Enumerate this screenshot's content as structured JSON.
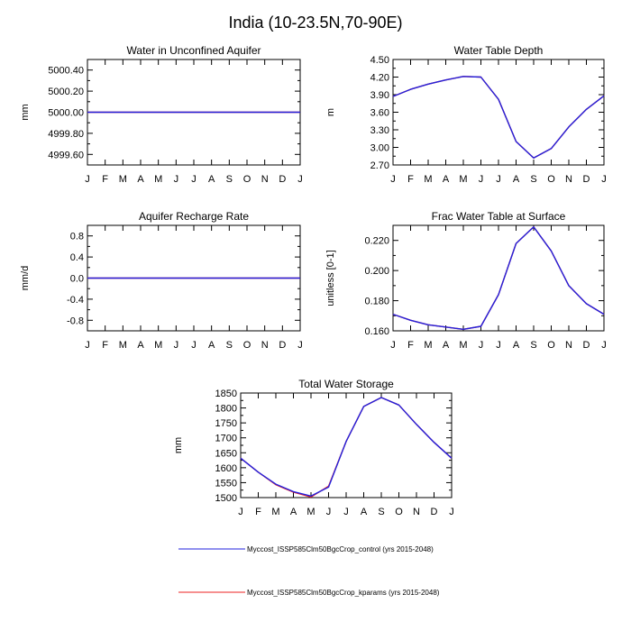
{
  "page_title": "India (10-23.5N,70-90E)",
  "months": [
    "J",
    "F",
    "M",
    "A",
    "M",
    "J",
    "J",
    "A",
    "S",
    "O",
    "N",
    "D",
    "J"
  ],
  "colors": {
    "control": "#2222dd",
    "kparams": "#ee2222"
  },
  "legend": [
    {
      "key": "control",
      "label": "Myccost_ISSP585Clm50BgcCrop_control (yrs 2015-2048)"
    },
    {
      "key": "kparams",
      "label": "Myccost_ISSP585Clm50BgcCrop_kparams (yrs 2015-2048)"
    }
  ],
  "chart_data": [
    {
      "type": "line",
      "title": "Water in Unconfined Aquifer",
      "ylabel": "mm",
      "ylim": [
        4999.5,
        5000.5
      ],
      "yticks": [
        4999.6,
        4999.8,
        5000.0,
        5000.2,
        5000.4
      ],
      "yticklabels": [
        "4999.60",
        "4999.80",
        "5000.00",
        "5000.20",
        "5000.40"
      ],
      "x": [
        "J",
        "F",
        "M",
        "A",
        "M",
        "J",
        "J",
        "A",
        "S",
        "O",
        "N",
        "D",
        "J"
      ],
      "series": [
        {
          "key": "control",
          "values": [
            5000,
            5000,
            5000,
            5000,
            5000,
            5000,
            5000,
            5000,
            5000,
            5000,
            5000,
            5000,
            5000
          ]
        },
        {
          "key": "kparams",
          "values": [
            5000,
            5000,
            5000,
            5000,
            5000,
            5000,
            5000,
            5000,
            5000,
            5000,
            5000,
            5000,
            5000
          ]
        }
      ]
    },
    {
      "type": "line",
      "title": "Water Table Depth",
      "ylabel": "m",
      "ylim": [
        2.7,
        4.5
      ],
      "yticks": [
        2.7,
        3.0,
        3.3,
        3.6,
        3.9,
        4.2,
        4.5
      ],
      "yticklabels": [
        "2.70",
        "3.00",
        "3.30",
        "3.60",
        "3.90",
        "4.20",
        "4.50"
      ],
      "x": [
        "J",
        "F",
        "M",
        "A",
        "M",
        "J",
        "J",
        "A",
        "S",
        "O",
        "N",
        "D",
        "J"
      ],
      "series": [
        {
          "key": "control",
          "values": [
            3.87,
            3.99,
            4.08,
            4.15,
            4.21,
            4.2,
            3.82,
            3.1,
            2.82,
            2.98,
            3.35,
            3.65,
            3.88
          ]
        },
        {
          "key": "kparams",
          "values": [
            3.87,
            3.99,
            4.08,
            4.15,
            4.21,
            4.2,
            3.82,
            3.1,
            2.82,
            2.98,
            3.35,
            3.65,
            3.88
          ]
        }
      ]
    },
    {
      "type": "line",
      "title": "Aquifer Recharge Rate",
      "ylabel": "mm/d",
      "ylim": [
        -1.0,
        1.0
      ],
      "yticks": [
        -0.8,
        -0.4,
        0.0,
        0.4,
        0.8
      ],
      "yticklabels": [
        "-0.8",
        "-0.4",
        "0.0",
        "0.4",
        "0.8"
      ],
      "x": [
        "J",
        "F",
        "M",
        "A",
        "M",
        "J",
        "J",
        "A",
        "S",
        "O",
        "N",
        "D",
        "J"
      ],
      "series": [
        {
          "key": "control",
          "values": [
            0,
            0,
            0,
            0,
            0,
            0,
            0,
            0,
            0,
            0,
            0,
            0,
            0
          ]
        },
        {
          "key": "kparams",
          "values": [
            0,
            0,
            0,
            0,
            0,
            0,
            0,
            0,
            0,
            0,
            0,
            0,
            0
          ]
        }
      ]
    },
    {
      "type": "line",
      "title": "Frac Water Table at Surface",
      "ylabel": "unitless [0-1]",
      "ylim": [
        0.16,
        0.23
      ],
      "yticks": [
        0.16,
        0.18,
        0.2,
        0.22
      ],
      "yticklabels": [
        "0.160",
        "0.180",
        "0.200",
        "0.220"
      ],
      "x": [
        "J",
        "F",
        "M",
        "A",
        "M",
        "J",
        "J",
        "A",
        "S",
        "O",
        "N",
        "D",
        "J"
      ],
      "series": [
        {
          "key": "control",
          "values": [
            0.171,
            0.167,
            0.164,
            0.1625,
            0.161,
            0.163,
            0.184,
            0.218,
            0.229,
            0.213,
            0.19,
            0.178,
            0.171
          ]
        },
        {
          "key": "kparams",
          "values": [
            0.171,
            0.167,
            0.164,
            0.1625,
            0.161,
            0.163,
            0.184,
            0.218,
            0.229,
            0.213,
            0.19,
            0.178,
            0.171
          ]
        }
      ]
    },
    {
      "type": "line",
      "title": "Total Water Storage",
      "ylabel": "mm",
      "ylim": [
        1500,
        1850
      ],
      "yticks": [
        1500,
        1550,
        1600,
        1650,
        1700,
        1750,
        1800,
        1850
      ],
      "yticklabels": [
        "1500",
        "1550",
        "1600",
        "1650",
        "1700",
        "1750",
        "1800",
        "1850"
      ],
      "x": [
        "J",
        "F",
        "M",
        "A",
        "M",
        "J",
        "J",
        "A",
        "S",
        "O",
        "N",
        "D",
        "J"
      ],
      "series": [
        {
          "key": "control",
          "values": [
            1632,
            1585,
            1545,
            1520,
            1505,
            1535,
            1688,
            1805,
            1835,
            1810,
            1745,
            1685,
            1632
          ]
        },
        {
          "key": "kparams",
          "values": [
            1632,
            1585,
            1543,
            1518,
            1502,
            1538,
            1688,
            1805,
            1835,
            1810,
            1745,
            1685,
            1632
          ]
        }
      ]
    }
  ]
}
